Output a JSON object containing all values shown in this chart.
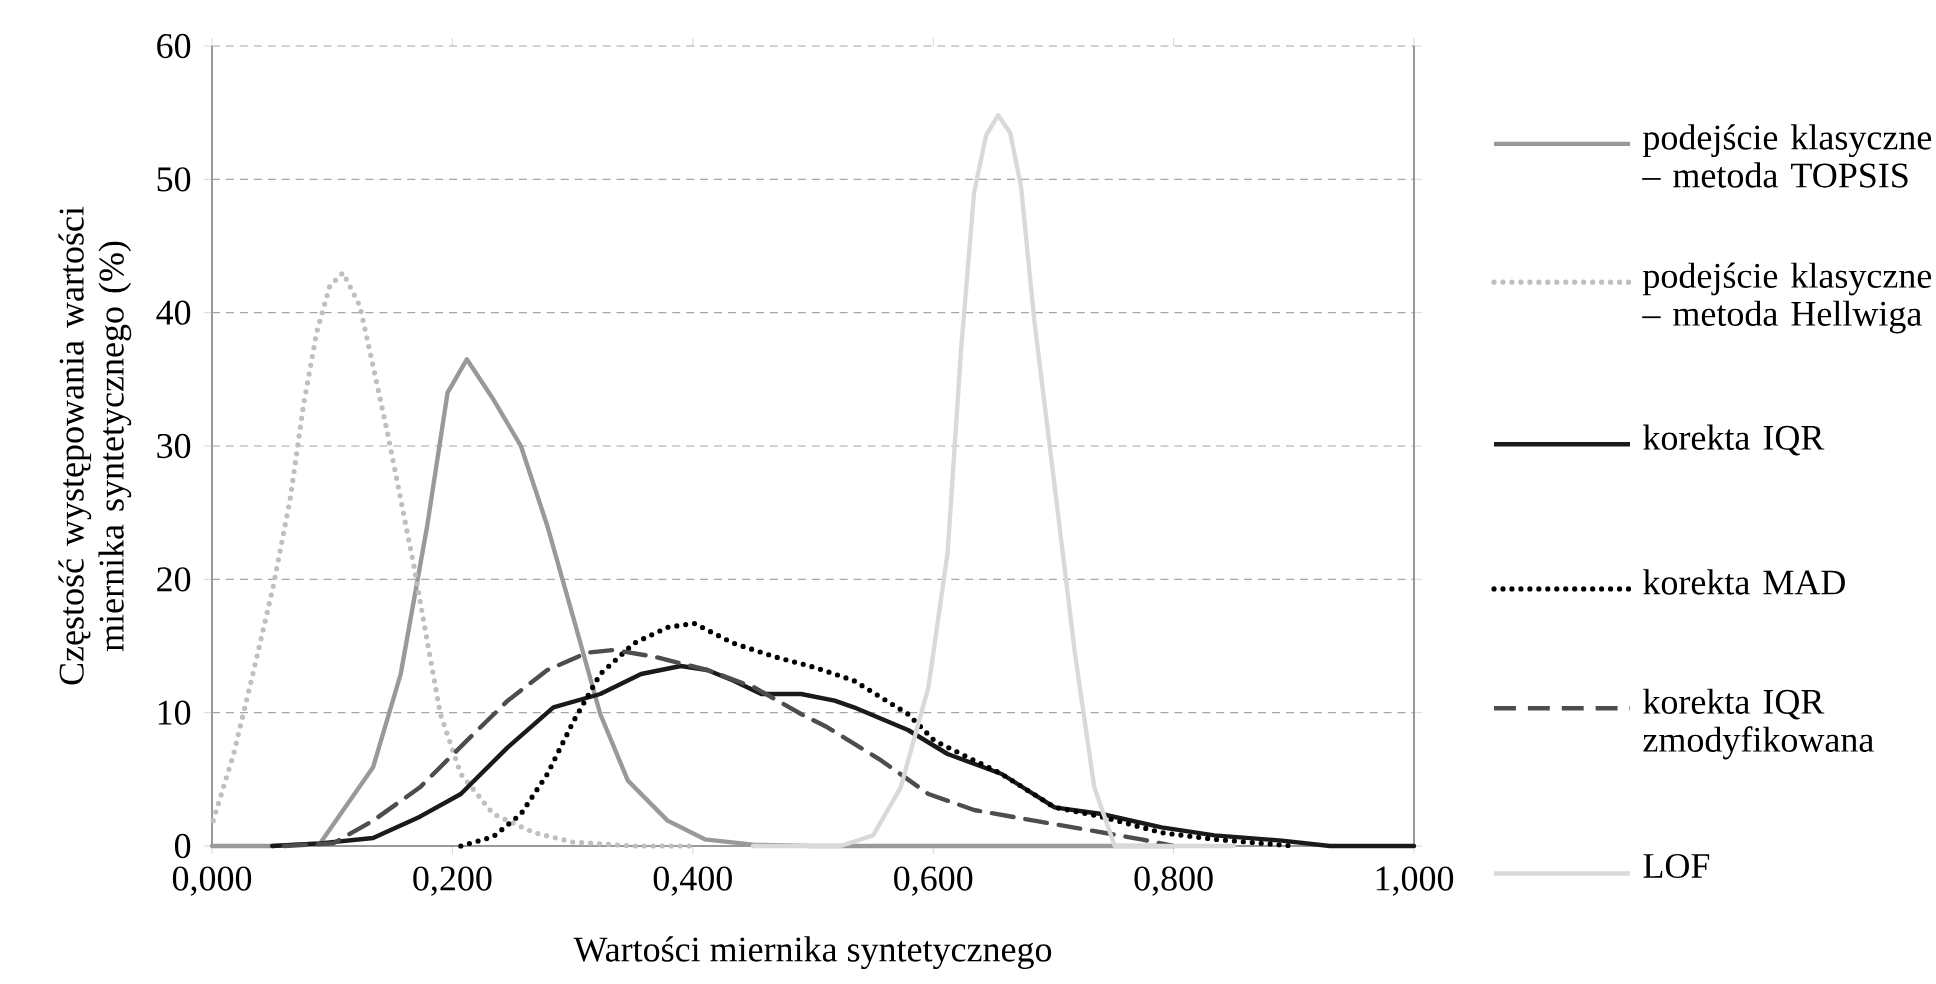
{
  "chart_data": {
    "type": "line",
    "xlabel": "Wartości miernika syntetycznego",
    "ylabel": "Częstość występowania wartości miernika syntetycznego (%)",
    "xlim": [
      0,
      1
    ],
    "ylim": [
      0,
      60
    ],
    "xticks": [
      {
        "value": 0,
        "label": "0,000"
      },
      {
        "value": 0.2,
        "label": "0,200"
      },
      {
        "value": 0.4,
        "label": "0,400"
      },
      {
        "value": 0.6,
        "label": "0,600"
      },
      {
        "value": 0.8,
        "label": "0,800"
      },
      {
        "value": 1,
        "label": "1,000"
      }
    ],
    "yticks": [
      0,
      10,
      20,
      30,
      40,
      50,
      60
    ],
    "grid": "y",
    "legend": "right",
    "marker": "none",
    "series": [
      {
        "name": "podejście klasyczne – metoda TOPSIS",
        "color": "#999999",
        "line_style": "solid",
        "x": [
          0,
          0.05,
          0.09,
          0.134,
          0.157,
          0.179,
          0.196,
          0.212,
          0.234,
          0.257,
          0.279,
          0.301,
          0.323,
          0.346,
          0.379,
          0.41,
          0.45,
          0.5,
          0.6,
          0.8
        ],
        "values": [
          0,
          0,
          0.2,
          5.9,
          12.9,
          24,
          34,
          36.5,
          33.5,
          30,
          24,
          17,
          9.9,
          4.9,
          1.9,
          0.5,
          0.1,
          0,
          0,
          0
        ]
      },
      {
        "name": "podejście klasyczne – metoda Hellwiga",
        "color": "#bfbfbf",
        "line_style": "dotted",
        "x": [
          0.001,
          0.018,
          0.034,
          0.051,
          0.065,
          0.076,
          0.087,
          0.098,
          0.109,
          0.123,
          0.134,
          0.146,
          0.157,
          0.168,
          0.179,
          0.19,
          0.207,
          0.234,
          0.268,
          0.3,
          0.35,
          0.4
        ],
        "values": [
          1.9,
          6.9,
          12.9,
          19.5,
          26,
          33,
          38.5,
          42,
          43,
          40.5,
          36,
          31,
          26,
          21,
          15.4,
          9.9,
          5.4,
          2.4,
          1,
          0.3,
          0,
          0
        ]
      },
      {
        "name": "korekta IQR",
        "color": "#1a1a1a",
        "line_style": "solid",
        "x": [
          0.05,
          0.09,
          0.134,
          0.173,
          0.207,
          0.246,
          0.284,
          0.323,
          0.357,
          0.39,
          0.412,
          0.434,
          0.457,
          0.49,
          0.518,
          0.534,
          0.579,
          0.612,
          0.657,
          0.701,
          0.74,
          0.79,
          0.834,
          0.89,
          0.93,
          1
        ],
        "values": [
          0,
          0.2,
          0.6,
          2.2,
          3.9,
          7.4,
          10.4,
          11.4,
          12.9,
          13.5,
          13.2,
          12.4,
          11.4,
          11.4,
          10.9,
          10.4,
          8.7,
          6.9,
          5.4,
          2.9,
          2.4,
          1.4,
          0.8,
          0.4,
          0,
          0
        ]
      },
      {
        "name": "korekta MAD",
        "color": "#000000",
        "line_style": "dotted",
        "x": [
          0.207,
          0.234,
          0.257,
          0.279,
          0.301,
          0.323,
          0.351,
          0.379,
          0.401,
          0.434,
          0.468,
          0.501,
          0.518,
          0.534,
          0.579,
          0.601,
          0.657,
          0.701,
          0.74,
          0.79,
          0.834,
          0.9
        ],
        "values": [
          0,
          0.7,
          2.4,
          5.4,
          9.4,
          12.9,
          15.2,
          16.4,
          16.7,
          15.2,
          14.2,
          13.4,
          12.9,
          12.4,
          9.9,
          7.9,
          5.4,
          2.9,
          2.2,
          1,
          0.5,
          0
        ]
      },
      {
        "name": "korekta IQR zmodyfikowana",
        "color": "#4d4d4d",
        "line_style": "dashed",
        "x": [
          0.06,
          0.101,
          0.134,
          0.173,
          0.212,
          0.246,
          0.279,
          0.312,
          0.334,
          0.368,
          0.412,
          0.451,
          0.49,
          0.512,
          0.557,
          0.596,
          0.634,
          0.684,
          0.729,
          0.773,
          0.8
        ],
        "values": [
          0,
          0.2,
          1.9,
          4.4,
          7.9,
          10.9,
          13.2,
          14.5,
          14.7,
          14.2,
          13.2,
          11.9,
          9.9,
          8.9,
          6.4,
          3.9,
          2.7,
          1.9,
          1.2,
          0.5,
          0
        ]
      },
      {
        "name": "LOF",
        "color": "#d9d9d9",
        "line_style": "solid",
        "x": [
          0.45,
          0.5,
          0.523,
          0.55,
          0.573,
          0.596,
          0.612,
          0.623,
          0.634,
          0.644,
          0.654,
          0.664,
          0.673,
          0.684,
          0.701,
          0.718,
          0.734,
          0.751,
          0.779,
          0.8,
          0.85
        ],
        "values": [
          0,
          0,
          0,
          0.8,
          4.4,
          11.9,
          22,
          37,
          49,
          53.3,
          54.8,
          53.5,
          49.5,
          39.5,
          27,
          14.4,
          4.4,
          0,
          0,
          0,
          0
        ]
      }
    ]
  }
}
